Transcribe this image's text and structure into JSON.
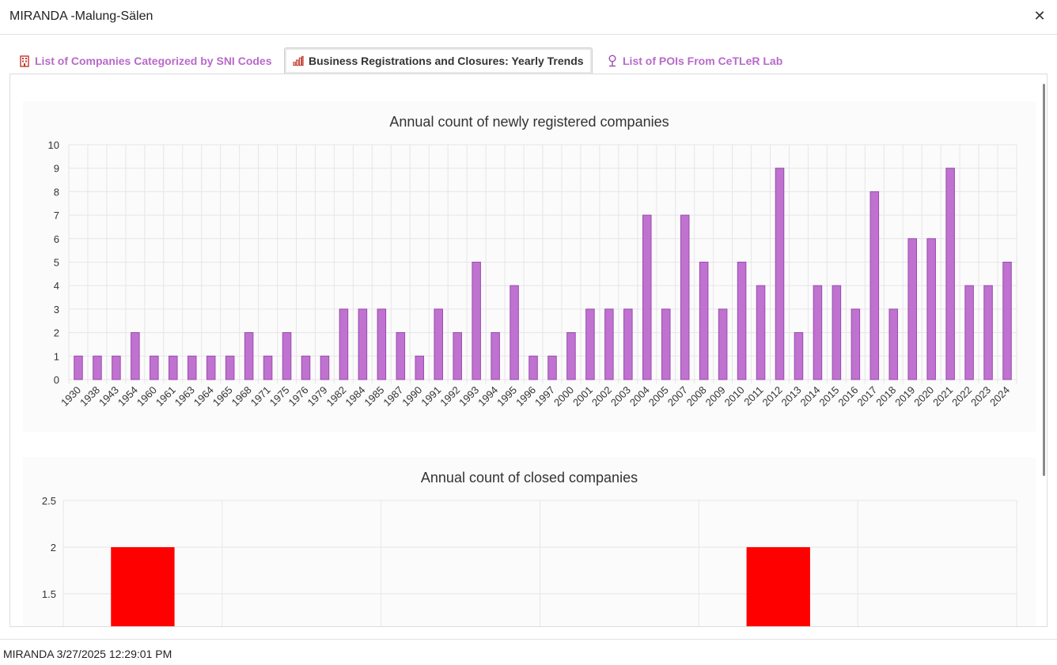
{
  "window": {
    "title": "MIRANDA -Malung-Sälen",
    "close_icon": "close-icon"
  },
  "tabs": [
    {
      "label": "List of Companies Categorized by SNI Codes",
      "icon": "building-icon",
      "active": false
    },
    {
      "label": "Business Registrations and Closures: Yearly Trends",
      "icon": "bar-chart-icon",
      "active": true
    },
    {
      "label": "List of POIs From CeTLeR Lab",
      "icon": "map-pin-icon",
      "active": false
    }
  ],
  "colors": {
    "accent": "#b86ac9",
    "bar_fill": "#bf72cf",
    "bar_stroke": "#9b4bb0",
    "closed_bar": "#ff0000"
  },
  "chart_data": [
    {
      "type": "bar",
      "title": "Annual count of newly registered companies",
      "xlabel": "",
      "ylabel": "",
      "ylim": [
        0,
        10
      ],
      "yticks": [
        "0",
        "1",
        "2",
        "3",
        "4",
        "5",
        "6",
        "7",
        "8",
        "9",
        "10"
      ],
      "grid": true,
      "categories": [
        "1930",
        "1938",
        "1943",
        "1954",
        "1960",
        "1961",
        "1963",
        "1964",
        "1965",
        "1968",
        "1971",
        "1975",
        "1976",
        "1979",
        "1982",
        "1984",
        "1985",
        "1987",
        "1990",
        "1991",
        "1992",
        "1993",
        "1994",
        "1995",
        "1996",
        "1997",
        "2000",
        "2001",
        "2002",
        "2003",
        "2004",
        "2005",
        "2007",
        "2008",
        "2009",
        "2010",
        "2011",
        "2012",
        "2013",
        "2014",
        "2015",
        "2016",
        "2017",
        "2018",
        "2019",
        "2020",
        "2021",
        "2022",
        "2023",
        "2024"
      ],
      "values": [
        1,
        1,
        1,
        2,
        1,
        1,
        1,
        1,
        1,
        2,
        1,
        2,
        1,
        1,
        3,
        3,
        3,
        2,
        1,
        3,
        2,
        5,
        2,
        4,
        1,
        1,
        2,
        3,
        3,
        3,
        7,
        3,
        7,
        5,
        3,
        5,
        4,
        9,
        2,
        4,
        4,
        3,
        8,
        3,
        6,
        6,
        9,
        4,
        4,
        5
      ]
    },
    {
      "type": "bar",
      "title": "Annual count of closed companies",
      "xlabel": "",
      "ylabel": "",
      "ylim_visible": [
        1.2,
        2.5
      ],
      "yticks": [
        "2.5",
        "2",
        "1.5"
      ],
      "grid": true,
      "categories": [
        "",
        "",
        "",
        "",
        "",
        ""
      ],
      "values": [
        2,
        null,
        null,
        null,
        2,
        null
      ]
    }
  ],
  "footer": {
    "status": "MIRANDA 3/27/2025 12:29:01 PM"
  }
}
